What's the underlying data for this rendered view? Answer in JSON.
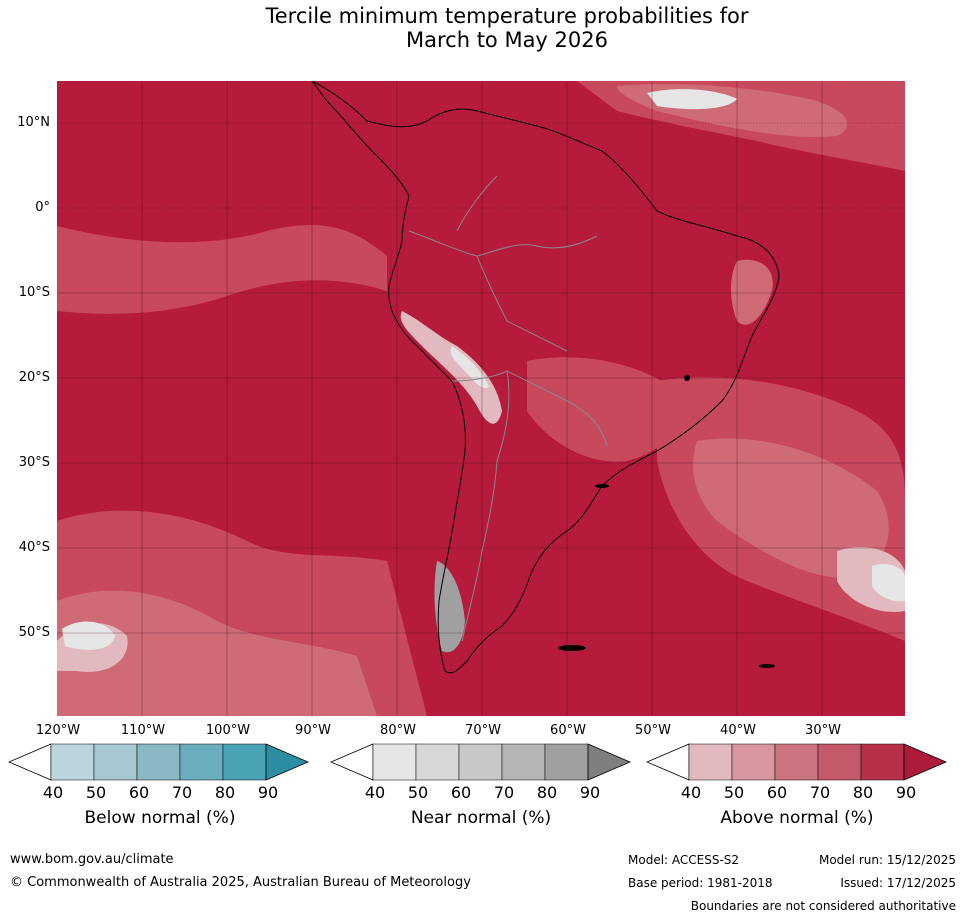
{
  "title": {
    "line1": "Tercile minimum temperature probabilities for",
    "line2": "March to May 2026"
  },
  "map": {
    "region": "South America",
    "latitude_labels": [
      "10°N",
      "0°",
      "10°S",
      "20°S",
      "30°S",
      "40°S",
      "50°S"
    ],
    "longitude_labels": [
      "120°W",
      "110°W",
      "100°W",
      "90°W",
      "80°W",
      "70°W",
      "60°W",
      "50°W",
      "40°W",
      "30°W"
    ],
    "dominant_category": "Above normal",
    "dominant_probability_band": "80-90+"
  },
  "legends": [
    {
      "label": "Below normal (%)",
      "ticks": [
        "40",
        "50",
        "60",
        "70",
        "80",
        "90"
      ],
      "colors": [
        "#ffffff",
        "#bcd5dc",
        "#a6c8d0",
        "#8ab8c3",
        "#6aaebd",
        "#4aa3b4",
        "#2b8ea3"
      ]
    },
    {
      "label": "Near normal (%)",
      "ticks": [
        "40",
        "50",
        "60",
        "70",
        "80",
        "90"
      ],
      "colors": [
        "#ffffff",
        "#e6e6e6",
        "#d7d7d7",
        "#c8c8c8",
        "#b5b5b5",
        "#a0a0a0",
        "#7f7f7f"
      ]
    },
    {
      "label": "Above normal (%)",
      "ticks": [
        "40",
        "50",
        "60",
        "70",
        "80",
        "90"
      ],
      "colors": [
        "#ffffff",
        "#e2b9be",
        "#d8979f",
        "#cc7480",
        "#c35969",
        "#b7304a",
        "#ad1a3a"
      ]
    }
  ],
  "footer": {
    "url": "www.bom.gov.au/climate",
    "copyright": "© Commonwealth of Australia 2025, Australian Bureau of Meteorology",
    "model": "Model: ACCESS-S2",
    "model_run": "Model run: 15/12/2025",
    "base_period": "Base period: 1981-2018",
    "issued": "Issued: 17/12/2025",
    "disclaimer": "Boundaries are not considered authoritative"
  }
}
